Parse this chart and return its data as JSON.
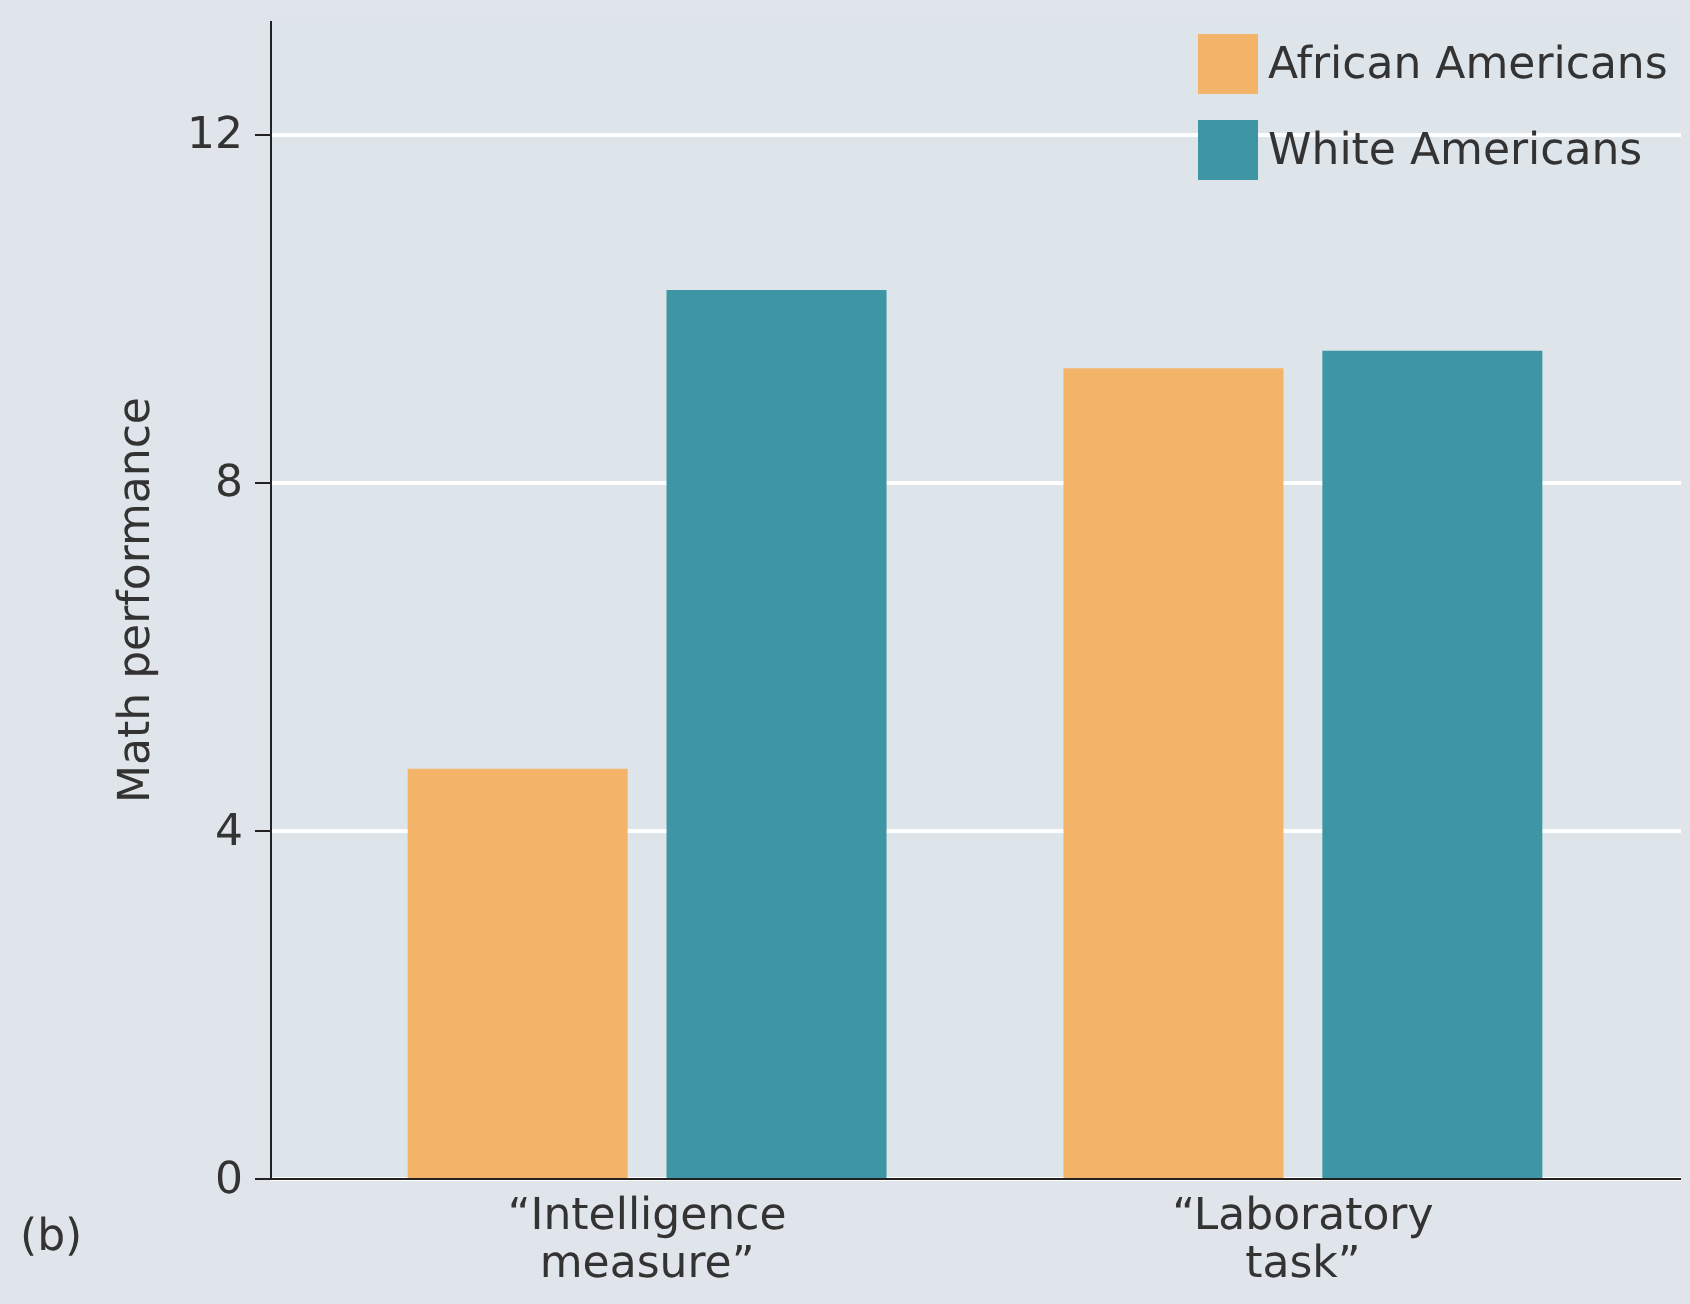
{
  "chart_data": {
    "type": "bar",
    "ylabel": "Math performance",
    "categories": [
      "“Intelligence measure”",
      "“Laboratory task”"
    ],
    "series": [
      {
        "name": "African Americans",
        "color": "#f3b46a",
        "values": [
          4.7,
          9.3
        ]
      },
      {
        "name": "White Americans",
        "color": "#3e96a5",
        "values": [
          10.2,
          9.5
        ]
      }
    ],
    "ylim": [
      0,
      13.3
    ],
    "yticks": [
      0,
      4,
      8,
      12
    ],
    "grid": "y",
    "legend": "top right",
    "annotations": [
      "(b)"
    ]
  }
}
